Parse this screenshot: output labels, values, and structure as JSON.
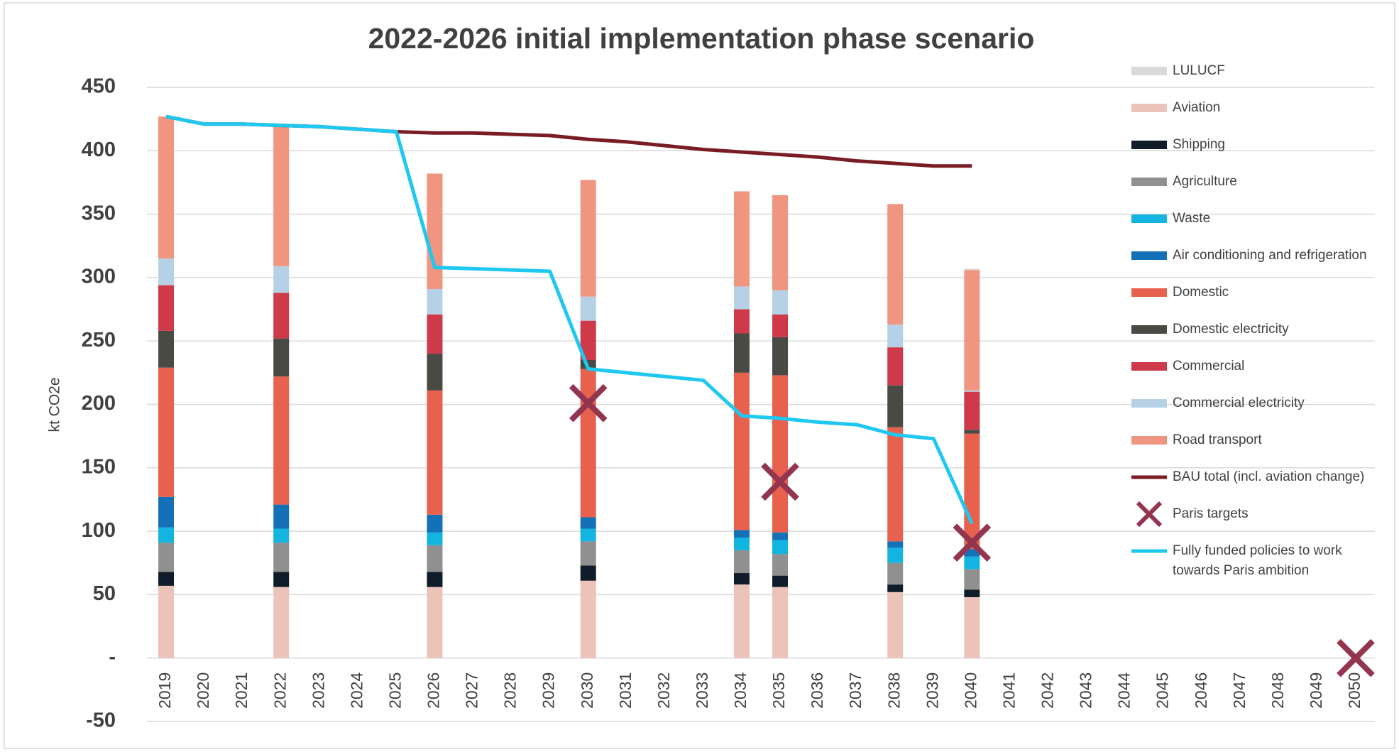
{
  "chart_data": {
    "type": "bar",
    "stacked": true,
    "title": "2022-2026 initial implementation phase scenario",
    "y_label": "kt CO2e",
    "categories": [
      "2019",
      "2020",
      "2021",
      "2022",
      "2023",
      "2024",
      "2025",
      "2026",
      "2027",
      "2028",
      "2029",
      "2030",
      "2031",
      "2032",
      "2033",
      "2034",
      "2035",
      "2036",
      "2037",
      "2038",
      "2039",
      "2040",
      "2041",
      "2042",
      "2043",
      "2044",
      "2045",
      "2046",
      "2047",
      "2048",
      "2049",
      "2050"
    ],
    "ylim": [
      -50,
      450
    ],
    "yticks": [
      -50,
      {
        "value": 0,
        "label": "-"
      },
      50,
      100,
      150,
      200,
      250,
      300,
      350,
      400,
      450
    ],
    "grid": true,
    "legend": "right",
    "series": [
      {
        "name": "LULUCF",
        "type": "bar",
        "color": "#d9d9d9",
        "values": [
          0,
          null,
          null,
          0,
          null,
          null,
          null,
          0,
          null,
          null,
          null,
          0,
          null,
          null,
          null,
          0,
          0,
          null,
          null,
          0,
          null,
          1,
          null,
          null,
          null,
          null,
          null,
          null,
          null,
          null,
          null,
          null
        ]
      },
      {
        "name": "Aviation",
        "type": "bar",
        "color": "#ecc3b9",
        "values": [
          57,
          null,
          null,
          56,
          null,
          null,
          null,
          56,
          null,
          null,
          null,
          61,
          null,
          null,
          null,
          58,
          56,
          null,
          null,
          52,
          null,
          48,
          null,
          null,
          null,
          null,
          null,
          null,
          null,
          null,
          null,
          null
        ]
      },
      {
        "name": "Shipping",
        "type": "bar",
        "color": "#111c2b",
        "values": [
          11,
          null,
          null,
          12,
          null,
          null,
          null,
          12,
          null,
          null,
          null,
          12,
          null,
          null,
          null,
          9,
          9,
          null,
          null,
          6,
          null,
          6,
          null,
          null,
          null,
          null,
          null,
          null,
          null,
          null,
          null,
          null
        ]
      },
      {
        "name": "Agriculture",
        "type": "bar",
        "color": "#909090",
        "values": [
          23,
          null,
          null,
          23,
          null,
          null,
          null,
          21,
          null,
          null,
          null,
          19,
          null,
          null,
          null,
          18,
          17,
          null,
          null,
          17,
          null,
          16,
          null,
          null,
          null,
          null,
          null,
          null,
          null,
          null,
          null,
          null
        ]
      },
      {
        "name": "Waste",
        "type": "bar",
        "color": "#13b4e0",
        "values": [
          12,
          null,
          null,
          11,
          null,
          null,
          null,
          10,
          null,
          null,
          null,
          10,
          null,
          null,
          null,
          10,
          11,
          null,
          null,
          12,
          null,
          10,
          null,
          null,
          null,
          null,
          null,
          null,
          null,
          null,
          null,
          null
        ]
      },
      {
        "name": "Air conditioning and refrigeration",
        "type": "bar",
        "color": "#1471b8",
        "values": [
          24,
          null,
          null,
          19,
          null,
          null,
          null,
          14,
          null,
          null,
          null,
          9,
          null,
          null,
          null,
          6,
          6,
          null,
          null,
          5,
          null,
          6,
          null,
          null,
          null,
          null,
          null,
          null,
          null,
          null,
          null,
          null
        ]
      },
      {
        "name": "Domestic",
        "type": "bar",
        "color": "#e8604e",
        "values": [
          102,
          null,
          null,
          101,
          null,
          null,
          null,
          98,
          null,
          null,
          null,
          117,
          null,
          null,
          null,
          124,
          124,
          null,
          null,
          90,
          null,
          91,
          null,
          null,
          null,
          null,
          null,
          null,
          null,
          null,
          null,
          null
        ]
      },
      {
        "name": "Domestic electricity",
        "type": "bar",
        "color": "#4a4a44",
        "values": [
          29,
          null,
          null,
          30,
          null,
          null,
          null,
          29,
          null,
          null,
          null,
          7,
          null,
          null,
          null,
          31,
          30,
          null,
          null,
          33,
          null,
          3,
          null,
          null,
          null,
          null,
          null,
          null,
          null,
          null,
          null,
          null
        ]
      },
      {
        "name": "Commercial",
        "type": "bar",
        "color": "#cf3a4a",
        "values": [
          36,
          null,
          null,
          36,
          null,
          null,
          null,
          31,
          null,
          null,
          null,
          31,
          null,
          null,
          null,
          19,
          18,
          null,
          null,
          30,
          null,
          30,
          null,
          null,
          null,
          null,
          null,
          null,
          null,
          null,
          null,
          null
        ]
      },
      {
        "name": "Commercial electricity",
        "type": "bar",
        "color": "#b6d1e6",
        "values": [
          21,
          null,
          null,
          21,
          null,
          null,
          null,
          20,
          null,
          null,
          null,
          19,
          null,
          null,
          null,
          18,
          19,
          null,
          null,
          18,
          null,
          1,
          null,
          null,
          null,
          null,
          null,
          null,
          null,
          null,
          null,
          null
        ]
      },
      {
        "name": "Road transport",
        "type": "bar",
        "color": "#f09580",
        "values": [
          112,
          null,
          null,
          111,
          null,
          null,
          null,
          91,
          null,
          null,
          null,
          92,
          null,
          null,
          null,
          75,
          75,
          null,
          null,
          95,
          null,
          95,
          null,
          null,
          null,
          null,
          null,
          null,
          null,
          null,
          null,
          null
        ]
      },
      {
        "name": "BAU total (incl. aviation change)",
        "type": "line",
        "color": "#7a1c24",
        "values": [
          427,
          421,
          421,
          420,
          419,
          417,
          415,
          414,
          414,
          413,
          412,
          409,
          407,
          404,
          401,
          399,
          397,
          395,
          392,
          390,
          388,
          388,
          null,
          null,
          null,
          null,
          null,
          null,
          null,
          null,
          null,
          null
        ]
      },
      {
        "name": "Paris targets",
        "type": "scatter",
        "color": "#93354f",
        "values": [
          null,
          null,
          null,
          null,
          null,
          null,
          null,
          null,
          null,
          null,
          null,
          201,
          null,
          null,
          null,
          null,
          139,
          null,
          null,
          null,
          null,
          91,
          null,
          null,
          null,
          null,
          null,
          null,
          null,
          null,
          null,
          0
        ]
      },
      {
        "name": "Fully funded policies to work towards Paris ambition",
        "type": "line",
        "color": "#1ec8f0",
        "values": [
          427,
          421,
          421,
          420,
          419,
          417,
          415,
          308,
          307,
          306,
          305,
          228,
          225,
          222,
          219,
          191,
          189,
          186,
          184,
          176,
          173,
          106,
          null,
          null,
          null,
          null,
          null,
          null,
          null,
          null,
          null,
          null
        ]
      }
    ]
  }
}
